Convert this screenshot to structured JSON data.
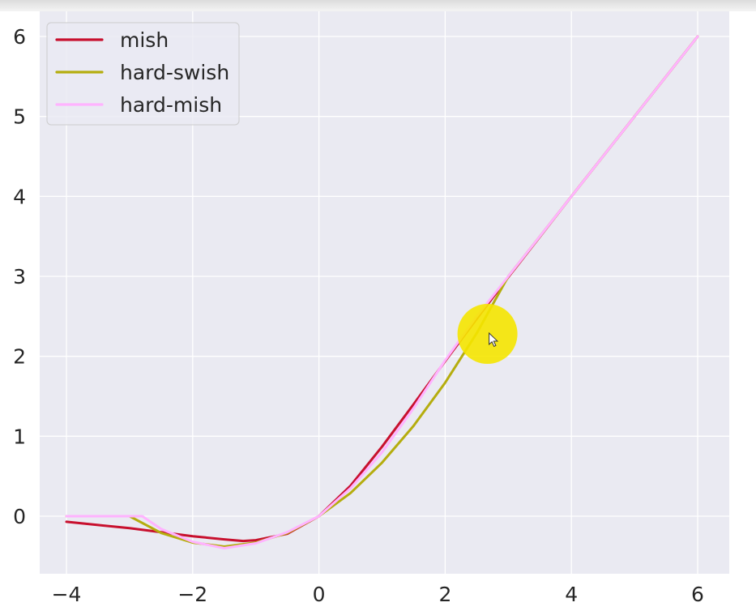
{
  "chart_data": {
    "type": "line",
    "xlim": [
      -4,
      6
    ],
    "ylim": [
      -0.7,
      6.4
    ],
    "xticks": [
      -4,
      -2,
      0,
      2,
      4,
      6
    ],
    "yticks": [
      0,
      1,
      2,
      3,
      4,
      5,
      6
    ],
    "xtick_labels": [
      "−4",
      "−2",
      "0",
      "2",
      "4",
      "6"
    ],
    "ytick_labels": [
      "0",
      "1",
      "2",
      "3",
      "4",
      "5",
      "6"
    ],
    "grid": true,
    "legend_position": "top-left",
    "series": [
      {
        "name": "mish",
        "color": "#c8102e",
        "x": [
          -4,
          -3.5,
          -3,
          -2.5,
          -2,
          -1.5,
          -1.2,
          -1,
          -0.5,
          0,
          0.5,
          1,
          1.5,
          2,
          2.5,
          3,
          4,
          5,
          6
        ],
        "y": [
          -0.07,
          -0.11,
          -0.15,
          -0.2,
          -0.25,
          -0.29,
          -0.31,
          -0.3,
          -0.22,
          0,
          0.38,
          0.87,
          1.4,
          1.94,
          2.47,
          2.99,
          4.0,
          5.0,
          6.0
        ]
      },
      {
        "name": "hard-swish",
        "color": "#b5ad0e",
        "x": [
          -4,
          -3.5,
          -3,
          -2.5,
          -2,
          -1.5,
          -1,
          -0.5,
          0,
          0.5,
          1,
          1.5,
          2,
          2.5,
          3,
          4,
          5,
          6
        ],
        "y": [
          0,
          0,
          0,
          -0.21,
          -0.33,
          -0.38,
          -0.33,
          -0.21,
          0,
          0.29,
          0.67,
          1.13,
          1.67,
          2.29,
          3.0,
          4.0,
          5.0,
          6.0
        ]
      },
      {
        "name": "hard-mish",
        "color": "#ffb3ff",
        "x": [
          -4,
          -3.5,
          -3,
          -2.8,
          -2.5,
          -2,
          -1.5,
          -1,
          -0.5,
          0,
          0.5,
          1,
          1.5,
          2,
          2.5,
          3,
          4,
          5,
          6
        ],
        "y": [
          0,
          0,
          0,
          0,
          -0.16,
          -0.32,
          -0.4,
          -0.34,
          -0.2,
          0,
          0.35,
          0.8,
          1.35,
          1.95,
          2.5,
          3.0,
          4.0,
          5.0,
          6.0
        ]
      }
    ]
  },
  "cursor_highlight": {
    "x": 2.67,
    "y": 2.28,
    "color": "#f5e600",
    "icon": "pointer-cursor-icon"
  },
  "colors": {
    "plot_background": "#eaeaf2",
    "grid": "#ffffff"
  }
}
